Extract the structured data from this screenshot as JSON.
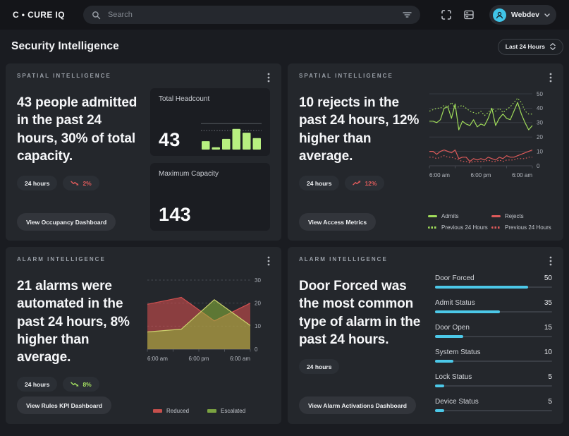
{
  "header": {
    "logo": "C • CURE IQ",
    "search_placeholder": "Search",
    "user_name": "Webdev"
  },
  "page": {
    "title": "Security Intelligence",
    "time_range": "Last 24 Hours"
  },
  "icons": {
    "search": "magnifier",
    "filter": "filter-lines",
    "fullscreen": "corner-brackets",
    "layout": "stacked-rows",
    "user": "person-circle",
    "chevron_down": "chevron-down",
    "unfold": "chevron-up-down",
    "kebab": "vertical-ellipsis",
    "trend_up": "zigzag-arrow-up",
    "trend_down": "zigzag-arrow-down"
  },
  "colors": {
    "accent_green": "#a0dc5a",
    "accent_red": "#dd5a5a",
    "accent_cyan": "#4cc8e8",
    "badge_red": "#e05c5c",
    "badge_green": "#a4e061",
    "bars_green": "#b7ef80"
  },
  "cards": [
    {
      "category": "SPATIAL INTELLIGENCE",
      "headline": "43 people admitted in the past 24 hours, 30% of total capacity.",
      "time_badge": "24 hours",
      "trend": {
        "value": "2%",
        "direction": "down",
        "color": "#e05c5c"
      },
      "button": "View Occupancy Dashboard",
      "panels": [
        {
          "label": "Total Headcount",
          "value": "43"
        },
        {
          "label": "Maximum Capacity",
          "value": "143"
        }
      ]
    },
    {
      "category": "SPATIAL INTELLIGENCE",
      "headline": "10 rejects in the past 24 hours, 12% higher than average.",
      "time_badge": "24 hours",
      "trend": {
        "value": "12%",
        "direction": "up",
        "color": "#e05c5c"
      },
      "button": "View Access Metrics"
    },
    {
      "category": "ALARM INTELLIGENCE",
      "headline": "21 alarms were automated in the past 24 hours, 8% higher than average.",
      "time_badge": "24 hours",
      "trend": {
        "value": "8%",
        "direction": "down",
        "color": "#a4e061"
      },
      "button": "View Rules KPI Dashboard"
    },
    {
      "category": "ALARM INTELLIGENCE",
      "headline": "Door Forced was the most common type of alarm in the past 24 hours.",
      "time_badge": "24 hours",
      "button": "View Alarm Activations Dashboard"
    }
  ],
  "chart_data": [
    {
      "id": "headcount_bars",
      "type": "bar",
      "title": "Total Headcount",
      "values": [
        11,
        3,
        14,
        27,
        22,
        15
      ],
      "ylim": [
        0,
        36
      ],
      "reference_lines": [
        {
          "value": 34,
          "style": "solid"
        },
        {
          "value": 25,
          "style": "dotted"
        }
      ],
      "color": "#b7ef80"
    },
    {
      "id": "access_lines",
      "type": "line",
      "ylim": [
        0,
        50
      ],
      "y_ticks": [
        0,
        10,
        20,
        30,
        40,
        50
      ],
      "x_tick_labels": [
        "6:00 am",
        "6:00 pm",
        "6:00 am"
      ],
      "legend_position": "bottom",
      "grid": true,
      "series": [
        {
          "name": "Admits",
          "color": "#a0dc5a",
          "style": "solid",
          "values": [
            31,
            31,
            30,
            32,
            40,
            41,
            33,
            43,
            25,
            31,
            29,
            28,
            32,
            27,
            29,
            28,
            33,
            40,
            28,
            33,
            36,
            33,
            32,
            38,
            44,
            36,
            30,
            25,
            28
          ]
        },
        {
          "name": "Rejects",
          "color": "#dd5a5a",
          "style": "solid",
          "values": [
            10,
            10,
            8,
            10,
            11,
            10,
            9,
            11,
            5,
            6,
            6,
            3,
            5,
            4,
            5,
            4,
            6,
            5,
            4,
            6,
            5,
            7,
            6,
            6,
            7,
            8,
            9,
            10,
            11
          ]
        },
        {
          "name": "Previous 24 Hours",
          "color": "#a0dc5a",
          "style": "dotted",
          "values": [
            38,
            39,
            40,
            40,
            42,
            41,
            44,
            40,
            41,
            42,
            40,
            38,
            37,
            36,
            38,
            35,
            37,
            40,
            38,
            40,
            37,
            39,
            41,
            44,
            47,
            44,
            38,
            36,
            36
          ]
        },
        {
          "name": "Previous 24 Hours",
          "color": "#dd5a5a",
          "style": "dotted",
          "values": [
            6,
            6,
            5,
            6,
            7,
            6,
            6,
            5,
            4,
            3,
            3,
            2,
            3,
            3,
            3,
            3,
            4,
            3,
            3,
            4,
            3,
            4,
            4,
            4,
            5,
            5,
            5,
            6,
            6
          ]
        }
      ]
    },
    {
      "id": "alarm_area",
      "type": "area",
      "ylim": [
        0,
        30
      ],
      "y_ticks": [
        0,
        10,
        20,
        30
      ],
      "x_tick_labels": [
        "6:00 am",
        "6:00 pm",
        "6:00 am"
      ],
      "legend_position": "bottom",
      "series": [
        {
          "name": "Reduced",
          "line": "#d15050",
          "fill": "rgba(224,82,82,0.55)",
          "legend_color": "#c64f4c",
          "x": [
            0,
            0.33,
            0.65,
            1
          ],
          "values": [
            19.5,
            22.5,
            12.3,
            20
          ]
        },
        {
          "name": "Escalated",
          "line": "#ccd16d",
          "fill": "rgba(150,200,60,0.5)",
          "legend_color": "#7ba341",
          "x": [
            0,
            0.33,
            0.65,
            1
          ],
          "values": [
            7.5,
            8.7,
            21.5,
            10.3
          ]
        }
      ]
    },
    {
      "id": "alarm_types",
      "type": "table",
      "categories": [
        "Door Forced",
        "Admit Status",
        "Door Open",
        "System Status",
        "Lock Status",
        "Device Status"
      ],
      "values": [
        50,
        35,
        15,
        10,
        5,
        5
      ],
      "scale_max": 63,
      "bar_color": "#4cc8e8"
    }
  ]
}
